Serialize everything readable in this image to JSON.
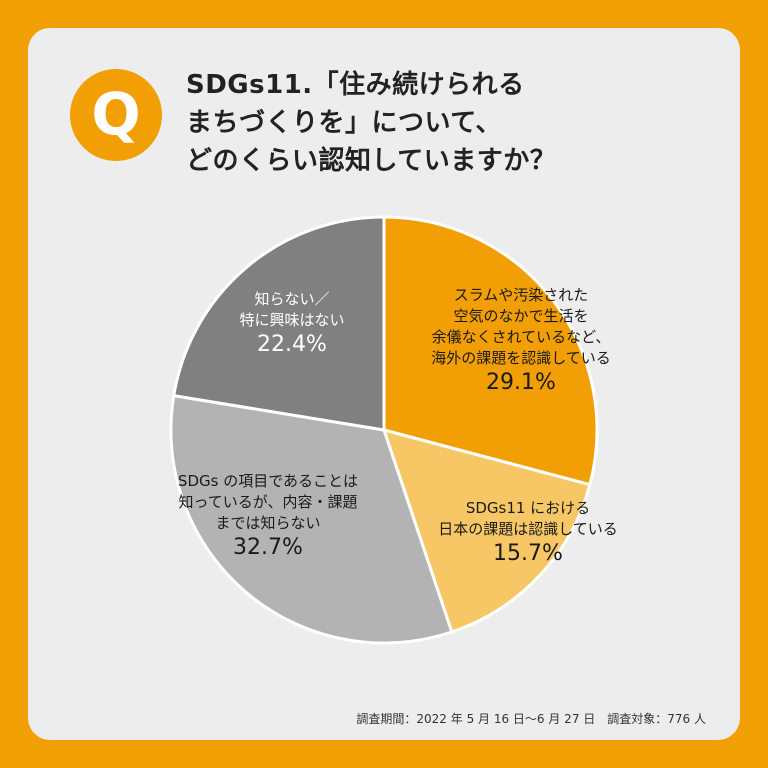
{
  "question": {
    "badge": "Q",
    "lines": [
      "SDGs11.「住み続けられる",
      "まちづくりを」について、",
      "どのくらい認知していますか？"
    ]
  },
  "colors": {
    "background": "#F29E05",
    "card": "#EDEDED"
  },
  "chart_data": {
    "type": "pie",
    "start": "12 o'clock, clockwise",
    "slices": [
      {
        "label_lines": [
          "スラムや汚染された",
          "空気のなかで生活を",
          "余儀なくされているなど、",
          "海外の課題を認識している"
        ],
        "value": 29.1,
        "value_label": "29.1%",
        "color": "#F29E05",
        "text_color": "#1a1a1a"
      },
      {
        "label_lines": [
          "SDGs11 における",
          "日本の課題は認識している"
        ],
        "value": 15.7,
        "value_label": "15.7%",
        "color": "#F7C766",
        "text_color": "#1a1a1a"
      },
      {
        "label_lines": [
          "SDGs の項目であることは",
          "知っているが、内容・課題",
          "までは知らない"
        ],
        "value": 32.7,
        "value_label": "32.7%",
        "color": "#B3B3B3",
        "text_color": "#1a1a1a"
      },
      {
        "label_lines": [
          "知らない／",
          "特に興味はない"
        ],
        "value": 22.4,
        "value_label": "22.4%",
        "color": "#808080",
        "text_color": "#ffffff"
      }
    ]
  },
  "footnote": "調査期間：2022 年 5 月 16 日〜6 月 27 日　調査対象：776 人"
}
